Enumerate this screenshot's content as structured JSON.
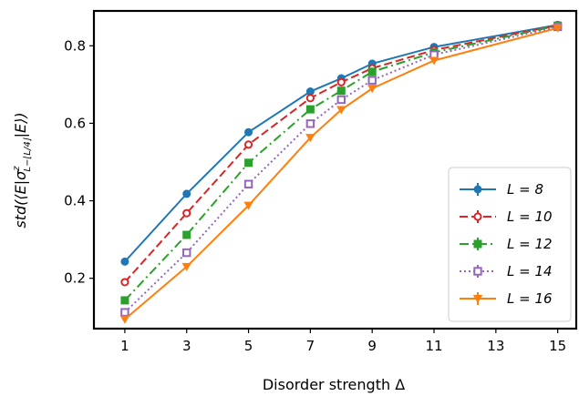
{
  "chart_data": {
    "type": "line",
    "xlabel": "Disorder strength Δ",
    "ylabel_parts": {
      "prefix": "std(⟨E|σ",
      "sup": "z",
      "sub": "L−⌊L/4⌋",
      "suffix": "|E⟩)"
    },
    "xlim": [
      0,
      15.6
    ],
    "ylim": [
      0.07,
      0.89
    ],
    "x_ticks": [
      1,
      3,
      5,
      7,
      9,
      11,
      13,
      15
    ],
    "y_ticks": [
      0.2,
      0.4,
      0.6,
      0.8
    ],
    "x_tick_labels": [
      "1",
      "3",
      "5",
      "7",
      "9",
      "11",
      "13",
      "15"
    ],
    "y_tick_labels": [
      "0.2",
      "0.4",
      "0.6",
      "0.8"
    ],
    "legend_position": "lower right",
    "x": [
      1,
      3,
      5,
      7,
      8,
      9,
      11,
      15
    ],
    "series": [
      {
        "name": "L = 8",
        "color": "#1f77b4",
        "dash": "",
        "marker": "circle",
        "values": [
          0.243,
          0.418,
          0.577,
          0.682,
          0.716,
          0.754,
          0.797,
          0.854
        ]
      },
      {
        "name": "L = 10",
        "color": "#d62728",
        "dash": "9 4",
        "marker": "circle-open",
        "values": [
          0.19,
          0.368,
          0.545,
          0.665,
          0.706,
          0.742,
          0.789,
          0.853
        ]
      },
      {
        "name": "L = 12",
        "color": "#2ca02c",
        "dash": "10 4 2 4",
        "marker": "square",
        "values": [
          0.143,
          0.312,
          0.498,
          0.636,
          0.684,
          0.733,
          0.783,
          0.852
        ]
      },
      {
        "name": "L = 14",
        "color": "#9467bd",
        "dash": "2 3",
        "marker": "square-open",
        "values": [
          0.112,
          0.266,
          0.443,
          0.599,
          0.661,
          0.711,
          0.777,
          0.849
        ]
      },
      {
        "name": "L = 16",
        "color": "#ff7f0e",
        "dash": "",
        "marker": "triangle-down",
        "values": [
          0.094,
          0.23,
          0.388,
          0.563,
          0.635,
          0.69,
          0.762,
          0.846
        ]
      }
    ]
  }
}
